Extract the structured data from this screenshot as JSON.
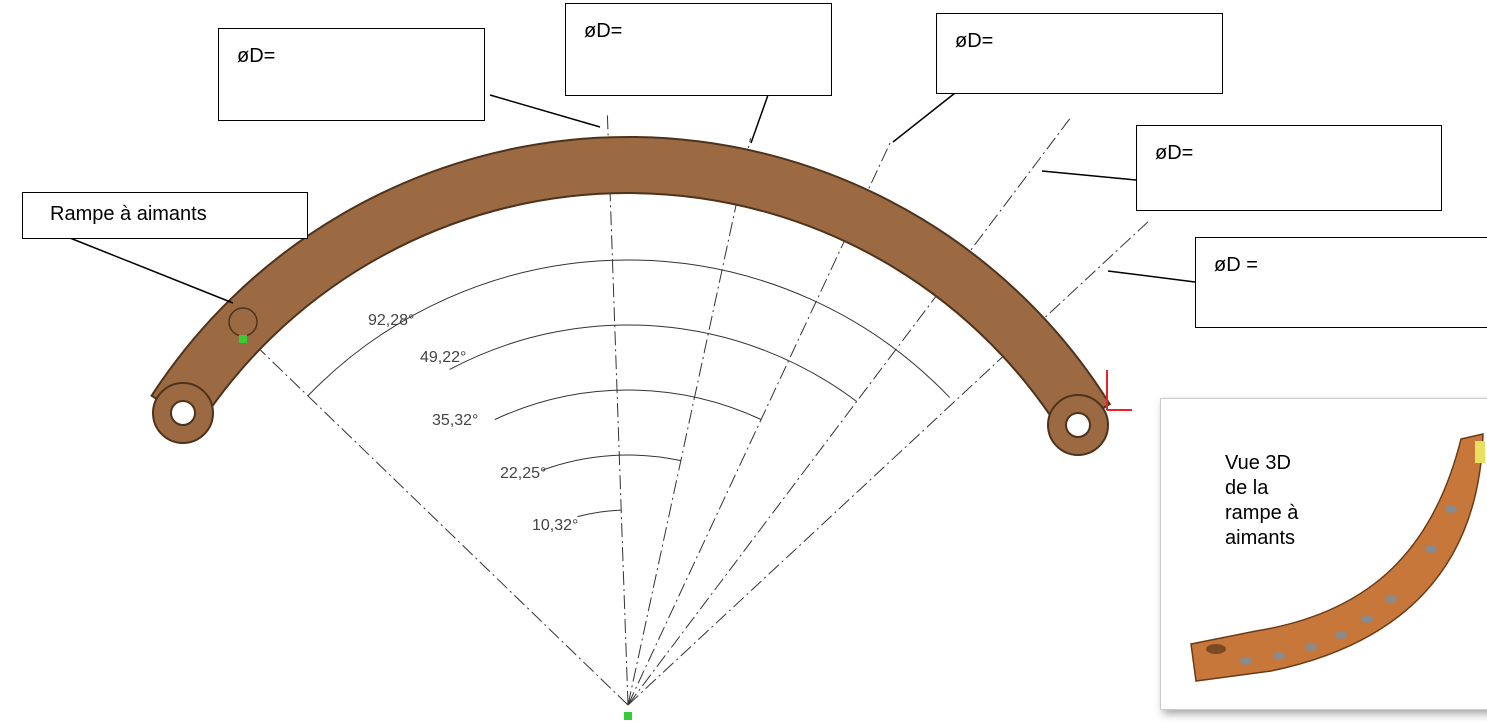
{
  "callouts": [
    "øD=",
    "øD=",
    "øD=",
    "øD=",
    "øD ="
  ],
  "part_label": "Rampe à aimants",
  "angles": [
    "92,28°",
    "49,22°",
    "35,32°",
    "22,25°",
    "10,32°"
  ],
  "view_3d": {
    "lines": [
      "Vue 3D",
      "de la",
      "rampe à",
      "aimants"
    ]
  }
}
